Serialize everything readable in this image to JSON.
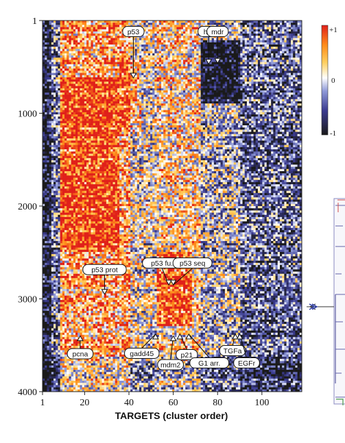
{
  "chart_data": {
    "type": "heatmap",
    "title": "",
    "xlabel": "TARGETS (cluster order)",
    "ylabel": "",
    "x_range": [
      1,
      118
    ],
    "y_range": [
      1,
      4000
    ],
    "x_ticks": [
      1,
      20,
      40,
      60,
      80,
      100
    ],
    "y_ticks": [
      1,
      1000,
      2000,
      3000,
      4000
    ],
    "x_tick_labels": [
      "1",
      "20",
      "40",
      "60",
      "80",
      "100"
    ],
    "y_tick_labels": [
      "1",
      "1000",
      "2000",
      "3000",
      "4000"
    ],
    "colorbar": {
      "min": -1,
      "max": 1,
      "labels": [
        "+1",
        "0",
        "-1"
      ],
      "colors": [
        "#1a1a1a",
        "#3a3a8f",
        "#8f9ad8",
        "#ffffff",
        "#ffd060",
        "#ff8c1a",
        "#e0201a"
      ]
    },
    "annotations": [
      {
        "label": "p53",
        "target_x": 42,
        "target_y": 620
      },
      {
        "label": "hrp",
        "target_x": 76,
        "target_y": 470
      },
      {
        "label": "mdr",
        "target_x": 80,
        "target_y": 460
      },
      {
        "label": "p53 fu.",
        "target_x": 58,
        "target_y": 2850
      },
      {
        "label": "p53 seq",
        "target_x": 60,
        "target_y": 2850
      },
      {
        "label": "p53 prot",
        "target_x": 29,
        "target_y": 2950
      },
      {
        "label": "pcna",
        "target_x": 18,
        "target_y": 3400
      },
      {
        "label": "gadd45",
        "target_x": 52,
        "target_y": 3380
      },
      {
        "label": "mdm2",
        "target_x": 60,
        "target_y": 3400
      },
      {
        "label": "p21",
        "target_x": 63,
        "target_y": 3380
      },
      {
        "label": "G1 arr.",
        "target_x": 67,
        "target_y": 3380
      },
      {
        "label": "TGFa",
        "target_x": 88,
        "target_y": 3380
      },
      {
        "label": "EGFr",
        "target_x": 90,
        "target_y": 3380
      }
    ]
  }
}
